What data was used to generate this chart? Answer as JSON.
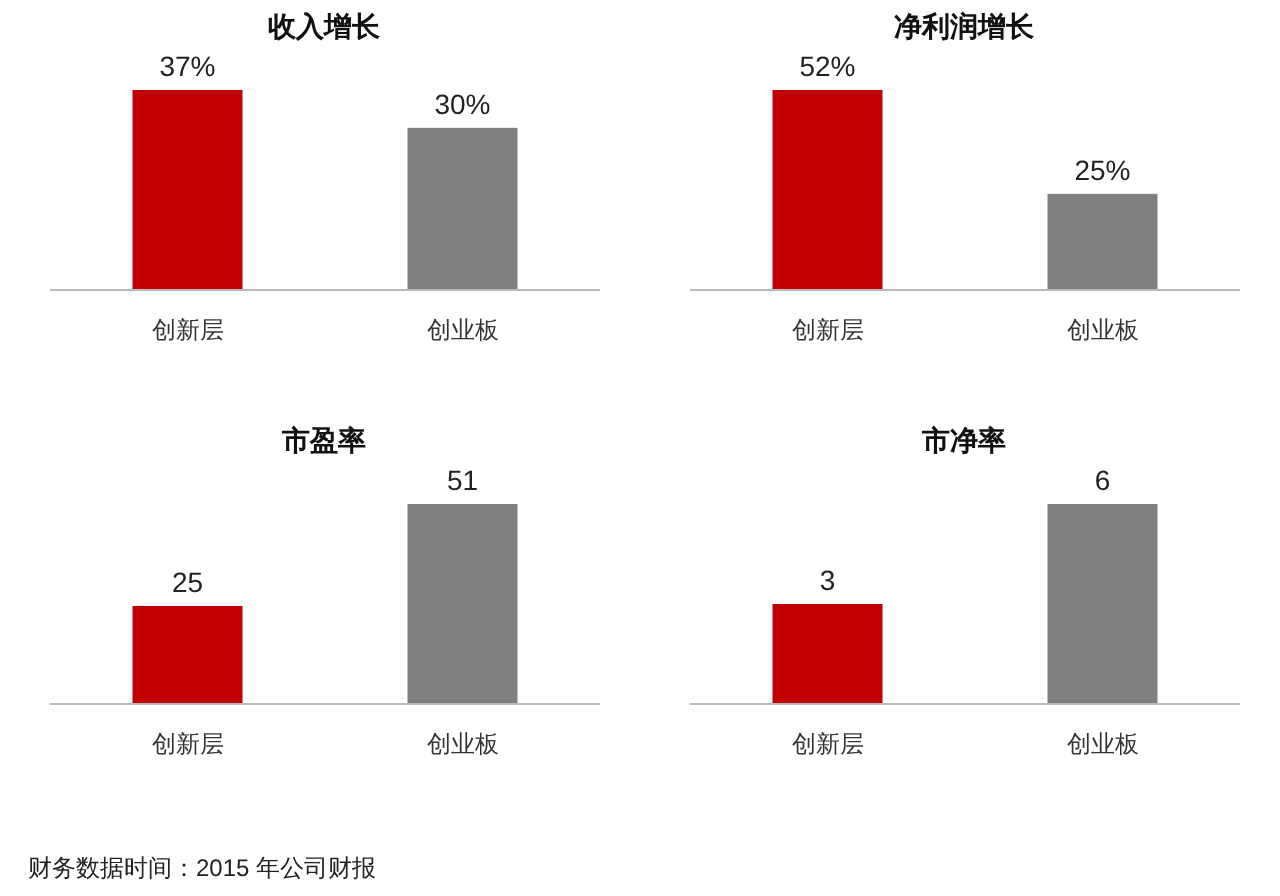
{
  "chart_data": [
    {
      "type": "bar",
      "title": "收入增长",
      "categories": [
        "创新层",
        "创业板"
      ],
      "values": [
        37,
        30
      ],
      "colors": [
        "#c00000",
        "#808080"
      ],
      "value_labels": [
        "37%",
        "30%"
      ]
    },
    {
      "type": "bar",
      "title": "净利润增长",
      "categories": [
        "创新层",
        "创业板"
      ],
      "values": [
        52,
        25
      ],
      "colors": [
        "#c00000",
        "#808080"
      ],
      "value_labels": [
        "52%",
        "25%"
      ]
    },
    {
      "type": "bar",
      "title": "市盈率",
      "categories": [
        "创新层",
        "创业板"
      ],
      "values": [
        25,
        51
      ],
      "colors": [
        "#c00000",
        "#808080"
      ],
      "data_labels": true
    },
    {
      "type": "bar",
      "title": "市净率",
      "categories": [
        "创新层",
        "创业板"
      ],
      "values": [
        3,
        6
      ],
      "colors": [
        "#c00000",
        "#808080"
      ],
      "data_labels": true,
      "annotations": [
        "财务数据时间：2015 年公司财报"
      ]
    }
  ]
}
